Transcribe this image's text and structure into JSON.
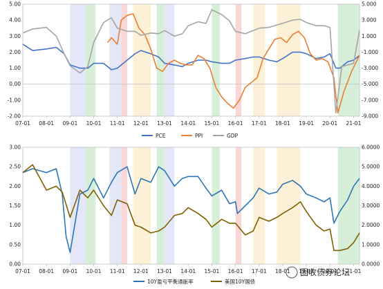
{
  "bands": [
    {
      "from": "2009-01",
      "to": "2009-09",
      "color": "#e3e7f8"
    },
    {
      "from": "2009-09",
      "to": "2010-02",
      "color": "#d7efd9"
    },
    {
      "from": "2010-09",
      "to": "2011-03",
      "color": "#e3e7f8"
    },
    {
      "from": "2011-03",
      "to": "2011-06",
      "color": "#f9d7d7"
    },
    {
      "from": "2011-09",
      "to": "2012-06",
      "color": "#fcf1d7"
    },
    {
      "from": "2012-09",
      "to": "2013-01",
      "color": "#d7efd9"
    },
    {
      "from": "2013-01",
      "to": "2013-06",
      "color": "#e3e7f8"
    },
    {
      "from": "2015-01",
      "to": "2015-05",
      "color": "#d7efd9"
    },
    {
      "from": "2016-01",
      "to": "2016-04",
      "color": "#f9d7d7"
    },
    {
      "from": "2016-10",
      "to": "2017-04",
      "color": "#fcf1d7"
    },
    {
      "from": "2017-10",
      "to": "2018-10",
      "color": "#fcf1d7"
    },
    {
      "from": "2020-05",
      "to": "2021-04",
      "color": "#d7efd9"
    }
  ],
  "watermark": "固收债券论坛",
  "chart_data": [
    {
      "type": "line",
      "x_ticks": [
        "07-01",
        "08-01",
        "09-01",
        "10-01",
        "11-01",
        "12-01",
        "13-01",
        "14-01",
        "15-01",
        "16-01",
        "17-01",
        "18-01",
        "19-01",
        "20-01",
        "21-01"
      ],
      "y_left_ticks": [
        "-2.00",
        "-1.00",
        "0.00",
        "1.00",
        "2.00",
        "3.00",
        "4.00",
        "5.00"
      ],
      "y_right_ticks": [
        "-9.000",
        "-7.000",
        "-5.000",
        "-3.000",
        "-1.000",
        "1.000",
        "3.000",
        "5.000"
      ],
      "ylim_left": [
        -2,
        5
      ],
      "ylim_right": [
        -9,
        5
      ],
      "legend_position": "bottom",
      "series": [
        {
          "name": "PCE",
          "axis": "left",
          "color": "#4472c4",
          "x": [
            "2007-01",
            "2007-06",
            "2008-01",
            "2008-06",
            "2008-10",
            "2009-01",
            "2009-06",
            "2009-10",
            "2010-01",
            "2010-06",
            "2010-10",
            "2011-01",
            "2011-06",
            "2011-10",
            "2012-01",
            "2012-06",
            "2012-10",
            "2013-01",
            "2013-06",
            "2013-10",
            "2014-01",
            "2014-06",
            "2014-10",
            "2015-01",
            "2015-06",
            "2015-10",
            "2016-01",
            "2016-06",
            "2016-10",
            "2017-01",
            "2017-06",
            "2017-10",
            "2018-01",
            "2018-06",
            "2018-10",
            "2019-01",
            "2019-06",
            "2019-10",
            "2020-01",
            "2020-04",
            "2020-06",
            "2020-10",
            "2021-01",
            "2021-04"
          ],
          "y": [
            2.5,
            2.1,
            2.2,
            2.3,
            1.9,
            1.2,
            1.0,
            1.0,
            1.3,
            1.3,
            0.9,
            1.0,
            1.5,
            1.9,
            2.1,
            1.9,
            1.7,
            1.3,
            1.2,
            1.1,
            1.3,
            1.5,
            1.5,
            1.4,
            1.3,
            1.3,
            1.5,
            1.6,
            1.7,
            1.7,
            1.5,
            1.4,
            1.6,
            2.0,
            2.0,
            1.9,
            1.6,
            1.7,
            1.9,
            1.0,
            1.0,
            1.4,
            1.5,
            1.8
          ]
        },
        {
          "name": "PPI",
          "axis": "left",
          "color": "#ed7d31",
          "x": [
            "2010-08",
            "2010-10",
            "2011-01",
            "2011-03",
            "2011-06",
            "2011-09",
            "2011-12",
            "2012-03",
            "2012-06",
            "2012-09",
            "2012-12",
            "2013-03",
            "2013-06",
            "2013-09",
            "2013-12",
            "2014-03",
            "2014-06",
            "2014-09",
            "2014-12",
            "2015-03",
            "2015-06",
            "2015-09",
            "2015-12",
            "2016-03",
            "2016-06",
            "2016-09",
            "2016-12",
            "2017-03",
            "2017-06",
            "2017-09",
            "2017-12",
            "2018-03",
            "2018-06",
            "2018-09",
            "2018-12",
            "2019-03",
            "2019-06",
            "2019-09",
            "2019-12",
            "2020-03",
            "2020-05",
            "2020-08",
            "2020-12",
            "2021-04"
          ],
          "y": [
            2.6,
            2.9,
            2.5,
            4.0,
            4.3,
            4.4,
            3.5,
            3.1,
            2.2,
            1.0,
            0.8,
            1.3,
            1.5,
            1.3,
            1.2,
            1.2,
            1.8,
            1.6,
            1.0,
            -0.2,
            -0.8,
            -1.2,
            -1.5,
            -1.0,
            -0.2,
            0.1,
            0.4,
            1.6,
            2.2,
            2.8,
            2.9,
            2.6,
            3.1,
            3.3,
            2.9,
            1.9,
            1.5,
            1.6,
            1.4,
            0.4,
            -1.8,
            -0.5,
            0.8,
            1.8
          ]
        },
        {
          "name": "GDP",
          "axis": "right",
          "color": "#a5a5a5",
          "x": [
            "2007-01",
            "2007-06",
            "2008-01",
            "2008-06",
            "2008-10",
            "2009-01",
            "2009-06",
            "2009-10",
            "2010-01",
            "2010-06",
            "2010-10",
            "2011-01",
            "2011-06",
            "2011-10",
            "2012-01",
            "2012-06",
            "2012-10",
            "2013-01",
            "2013-06",
            "2013-10",
            "2014-01",
            "2014-06",
            "2014-10",
            "2015-01",
            "2015-06",
            "2015-10",
            "2016-01",
            "2016-06",
            "2016-10",
            "2017-01",
            "2017-06",
            "2017-10",
            "2018-01",
            "2018-06",
            "2018-10",
            "2019-01",
            "2019-06",
            "2019-10",
            "2020-01",
            "2020-04",
            "2020-07",
            "2020-10",
            "2021-01",
            "2021-04"
          ],
          "y": [
            1.4,
            1.9,
            2.1,
            1.0,
            -1.2,
            -2.7,
            -3.6,
            -2.8,
            0.2,
            2.7,
            3.3,
            2.0,
            1.6,
            1.6,
            1.1,
            1.4,
            1.3,
            1.7,
            1.0,
            1.3,
            2.3,
            2.8,
            2.6,
            4.3,
            3.7,
            2.9,
            1.6,
            1.3,
            1.7,
            2.0,
            2.1,
            2.4,
            2.6,
            3.0,
            3.1,
            2.7,
            2.3,
            2.3,
            2.1,
            -8.6,
            -2.8,
            -2.6,
            -2.4,
            1.7
          ]
        }
      ]
    },
    {
      "type": "line",
      "x_ticks": [
        "07-01",
        "08-01",
        "09-01",
        "10-01",
        "11-01",
        "12-01",
        "13-01",
        "14-01",
        "15-01",
        "16-01",
        "17-01",
        "18-01",
        "19-01",
        "20-01",
        "21-01"
      ],
      "y_left_ticks": [
        "0.00",
        "0.50",
        "1.00",
        "1.50",
        "2.00",
        "2.50",
        "3.00"
      ],
      "y_right_ticks": [
        "0.0000",
        "1.0000",
        "2.0000",
        "3.0000",
        "4.0000",
        "5.0000",
        "6.0000"
      ],
      "ylim_left": [
        0,
        3
      ],
      "ylim_right": [
        0,
        6
      ],
      "legend_position": "bottom",
      "series": [
        {
          "name": "10Y盈亏平衡通胀率",
          "axis": "left",
          "color": "#2e75b6",
          "x": [
            "2007-01",
            "2007-06",
            "2008-01",
            "2008-06",
            "2008-09",
            "2008-11",
            "2009-01",
            "2009-06",
            "2009-10",
            "2010-01",
            "2010-06",
            "2010-10",
            "2011-01",
            "2011-06",
            "2011-10",
            "2012-01",
            "2012-06",
            "2012-10",
            "2013-01",
            "2013-06",
            "2013-10",
            "2014-01",
            "2014-06",
            "2014-10",
            "2015-01",
            "2015-06",
            "2015-10",
            "2016-01",
            "2016-02",
            "2016-06",
            "2016-10",
            "2017-01",
            "2017-06",
            "2017-10",
            "2018-01",
            "2018-06",
            "2018-10",
            "2019-01",
            "2019-06",
            "2019-10",
            "2020-01",
            "2020-03",
            "2020-06",
            "2020-10",
            "2021-01",
            "2021-04"
          ],
          "y": [
            2.35,
            2.45,
            2.35,
            2.45,
            1.8,
            0.7,
            0.3,
            1.8,
            1.9,
            2.2,
            1.7,
            2.1,
            2.35,
            2.5,
            1.8,
            2.2,
            2.1,
            2.5,
            2.4,
            2.0,
            2.2,
            2.25,
            2.25,
            1.95,
            1.75,
            1.9,
            1.55,
            1.6,
            1.3,
            1.5,
            1.7,
            1.95,
            1.8,
            1.85,
            2.05,
            2.15,
            2.0,
            1.8,
            1.7,
            1.6,
            1.7,
            1.05,
            1.35,
            1.65,
            2.0,
            2.2
          ]
        },
        {
          "name": "美国10Y国债",
          "axis": "right",
          "color": "#7f6000",
          "x": [
            "2007-01",
            "2007-06",
            "2008-01",
            "2008-06",
            "2008-09",
            "2009-01",
            "2009-06",
            "2009-10",
            "2010-01",
            "2010-06",
            "2010-10",
            "2011-01",
            "2011-06",
            "2011-10",
            "2012-01",
            "2012-06",
            "2012-10",
            "2013-01",
            "2013-06",
            "2013-10",
            "2014-01",
            "2014-06",
            "2014-10",
            "2015-01",
            "2015-06",
            "2015-10",
            "2016-01",
            "2016-06",
            "2016-10",
            "2017-01",
            "2017-06",
            "2017-10",
            "2018-01",
            "2018-06",
            "2018-10",
            "2019-01",
            "2019-06",
            "2019-10",
            "2020-01",
            "2020-03",
            "2020-06",
            "2020-10",
            "2021-01",
            "2021-04"
          ],
          "y": [
            4.7,
            5.1,
            3.8,
            4.0,
            3.7,
            2.4,
            3.8,
            3.4,
            3.8,
            3.0,
            2.5,
            3.3,
            3.1,
            2.0,
            1.9,
            1.6,
            1.7,
            1.9,
            2.5,
            2.6,
            2.9,
            2.6,
            2.3,
            1.9,
            2.3,
            2.1,
            2.1,
            1.5,
            1.7,
            2.4,
            2.2,
            2.4,
            2.6,
            2.9,
            3.2,
            2.7,
            2.0,
            1.7,
            1.8,
            0.7,
            0.7,
            0.8,
            1.1,
            1.6
          ]
        }
      ]
    }
  ]
}
